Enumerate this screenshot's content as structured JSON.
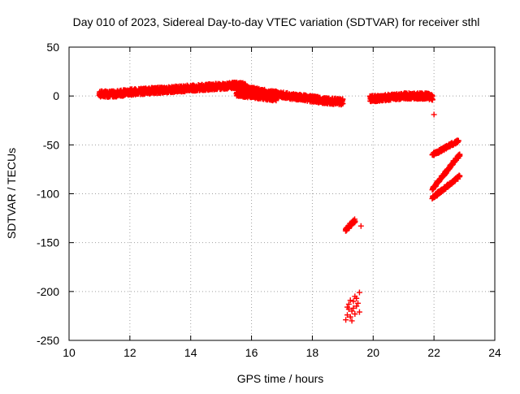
{
  "chart_data": {
    "type": "scatter",
    "title": "Day 010 of 2023, Sidereal Day-to-day VTEC variation (SDTVAR) for receiver sthl",
    "xlabel": "GPS time / hours",
    "ylabel": "SDTVAR / TECUs",
    "xlim": [
      10,
      24
    ],
    "ylim": [
      -250,
      50
    ],
    "xticks": [
      "10",
      "12",
      "14",
      "16",
      "18",
      "20",
      "22",
      "24"
    ],
    "yticks": [
      "50",
      "0",
      "-50",
      "-100",
      "-150",
      "-200",
      "-250"
    ],
    "grid": true,
    "marker": "plus",
    "colors": {
      "series": "#ff0000",
      "grid": "#a0a0a0",
      "axis": "#000000"
    },
    "series": [
      {
        "name": "SDTVAR",
        "segments": [
          {
            "x": [
              11.0,
              11.5,
              12.0,
              12.5,
              13.0,
              13.5,
              14.0,
              14.5,
              15.0,
              15.5,
              15.8
            ],
            "y": [
              2,
              2,
              4,
              5,
              6,
              7,
              8,
              9,
              10,
              11,
              10
            ],
            "spread": 3
          },
          {
            "x": [
              15.5,
              16.0,
              16.5,
              17.0,
              17.5,
              18.0,
              18.5,
              19.0
            ],
            "y": [
              8,
              6,
              3,
              1,
              -1,
              -3,
              -5,
              -6
            ],
            "spread": 3
          },
          {
            "x": [
              15.5,
              16.0,
              16.5,
              16.8
            ],
            "y": [
              2,
              0,
              -2,
              -3
            ],
            "spread": 2
          },
          {
            "x": [
              19.9,
              20.3,
              20.7,
              21.0,
              21.4,
              21.8,
              21.95
            ],
            "y": [
              -3,
              -2,
              -1,
              0,
              0,
              0,
              -2
            ],
            "spread": 3
          },
          {
            "x": [
              21.95,
              22.8
            ],
            "y": [
              -60,
              -46
            ],
            "spread": 1.5
          },
          {
            "x": [
              21.95,
              22.85
            ],
            "y": [
              -95,
              -60
            ],
            "spread": 1.5
          },
          {
            "x": [
              21.95,
              22.85
            ],
            "y": [
              -104,
              -82
            ],
            "spread": 1.5
          },
          {
            "x": [
              19.1,
              19.4
            ],
            "y": [
              -137,
              -127
            ],
            "spread": 2
          }
        ],
        "points": [
          {
            "x": 22.0,
            "y": -19
          },
          {
            "x": 19.6,
            "y": -133
          },
          {
            "x": 19.1,
            "y": -229
          },
          {
            "x": 19.15,
            "y": -224
          },
          {
            "x": 19.2,
            "y": -218
          },
          {
            "x": 19.25,
            "y": -226
          },
          {
            "x": 19.3,
            "y": -220
          },
          {
            "x": 19.35,
            "y": -210
          },
          {
            "x": 19.4,
            "y": -205
          },
          {
            "x": 19.45,
            "y": -215
          },
          {
            "x": 19.5,
            "y": -212
          },
          {
            "x": 19.55,
            "y": -201
          },
          {
            "x": 19.55,
            "y": -221
          },
          {
            "x": 19.2,
            "y": -213
          },
          {
            "x": 19.3,
            "y": -230
          },
          {
            "x": 19.4,
            "y": -223
          },
          {
            "x": 19.35,
            "y": -217
          },
          {
            "x": 19.25,
            "y": -209
          },
          {
            "x": 19.45,
            "y": -207
          },
          {
            "x": 19.15,
            "y": -216
          }
        ]
      }
    ]
  }
}
